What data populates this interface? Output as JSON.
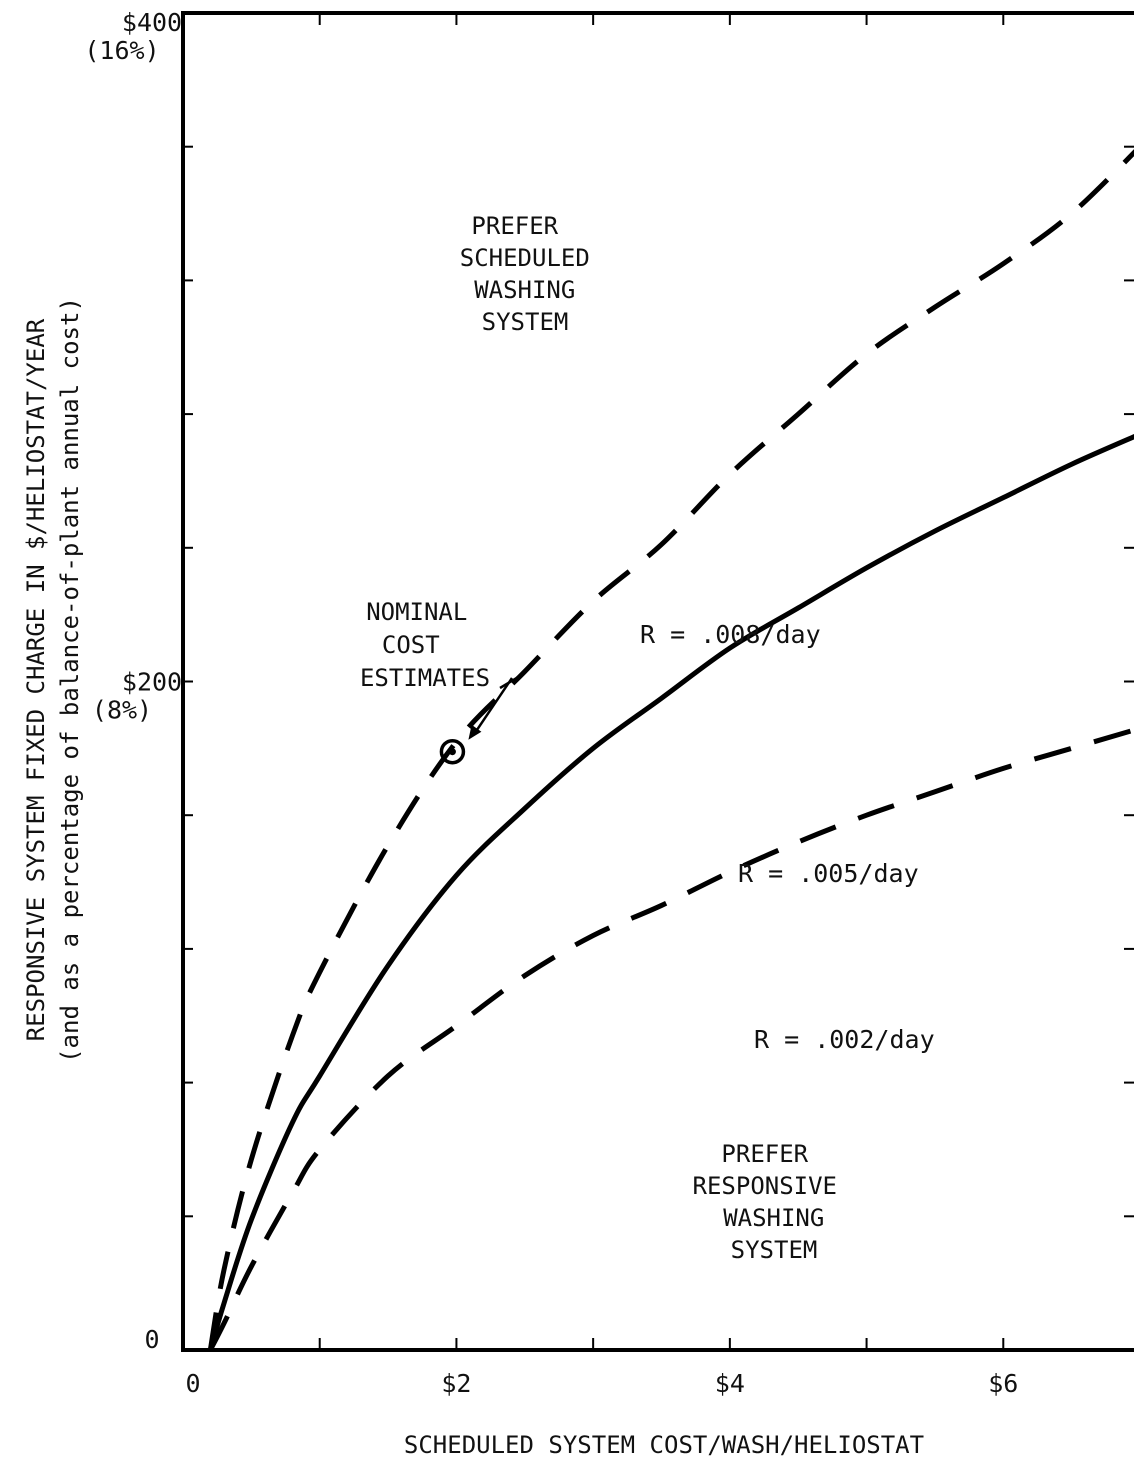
{
  "chart_data": {
    "type": "line",
    "xlabel": "SCHEDULED SYSTEM COST/WASH/HELIOSTAT",
    "ylabel": "RESPONSIVE SYSTEM FIXED CHARGE IN $/HELIOSTAT/YEAR",
    "ylabel_sub": "(and as a percentage of balance-of-plant annual cost)",
    "xlim": [
      0,
      7
    ],
    "ylim": [
      0,
      400
    ],
    "grid": false,
    "x_ticks": [
      {
        "value": 0,
        "label": "0"
      },
      {
        "value": 2,
        "label": "$2"
      },
      {
        "value": 4,
        "label": "$4"
      },
      {
        "value": 6,
        "label": "$6"
      }
    ],
    "y_ticks": [
      {
        "value": 0,
        "label": "0",
        "sublabel": ""
      },
      {
        "value": 200,
        "label": "$200",
        "sublabel": "(8%)"
      },
      {
        "value": 400,
        "label": "$400",
        "sublabel": "(16%)"
      }
    ],
    "series": [
      {
        "name": "R = .008/day",
        "style": "dashed",
        "x": [
          0.2,
          0.3,
          0.5,
          0.8,
          1.0,
          1.5,
          2.0,
          2.5,
          3.0,
          3.5,
          4.0,
          4.5,
          5.0,
          5.5,
          6.0,
          6.5,
          7.0
        ],
        "y": [
          0,
          24,
          57,
          94,
          113,
          151,
          182,
          203,
          224,
          241,
          262,
          280,
          298,
          312,
          325,
          340,
          360
        ]
      },
      {
        "name": "R = .005/day",
        "style": "solid",
        "x": [
          0.2,
          0.3,
          0.5,
          0.8,
          1.0,
          1.5,
          2.0,
          2.5,
          3.0,
          3.5,
          4.0,
          4.5,
          5.0,
          5.5,
          6.0,
          6.5,
          7.0
        ],
        "y": [
          0,
          14,
          39,
          68,
          82,
          115,
          142,
          162,
          180,
          195,
          210,
          222,
          234,
          245,
          255,
          265,
          274
        ]
      },
      {
        "name": "R = .002/day",
        "style": "dashed",
        "x": [
          0.2,
          0.3,
          0.5,
          0.8,
          1.0,
          1.5,
          2.0,
          2.5,
          3.0,
          3.5,
          4.0,
          4.5,
          5.0,
          5.5,
          6.0,
          6.5,
          7.0
        ],
        "y": [
          0,
          8,
          25,
          47,
          60,
          82,
          97,
          112,
          124,
          133,
          143,
          152,
          160,
          167,
          174,
          180,
          186
        ]
      }
    ],
    "point": {
      "x": 2.0,
      "y": 179
    },
    "annotations": {
      "scheduled_region": [
        "PREFER",
        "SCHEDULED",
        "WASHING",
        "SYSTEM"
      ],
      "responsive_region": [
        "PREFER",
        "RESPONSIVE",
        "WASHING",
        "SYSTEM"
      ],
      "nominal": [
        "NOMINAL",
        "COST",
        "ESTIMATES"
      ]
    }
  }
}
